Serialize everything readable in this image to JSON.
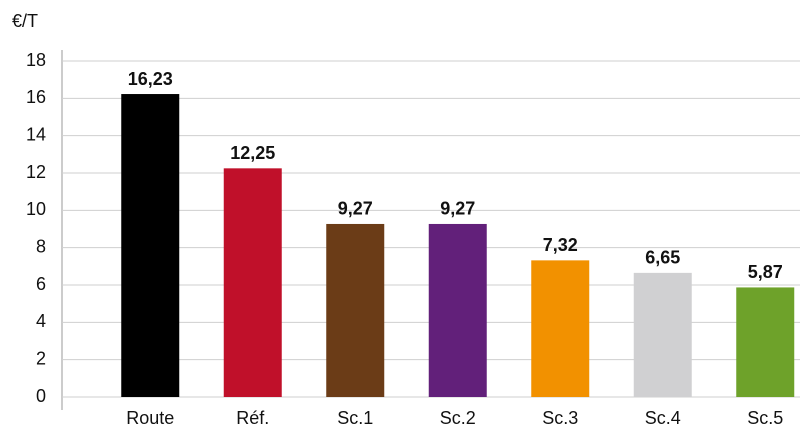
{
  "chart_data": {
    "type": "bar",
    "y_axis_label": "€/T",
    "categories": [
      "Route",
      "Réf.",
      "Sc.1",
      "Sc.2",
      "Sc.3",
      "Sc.4",
      "Sc.5"
    ],
    "values": [
      16.23,
      12.25,
      9.27,
      9.27,
      7.32,
      6.65,
      5.87
    ],
    "value_labels": [
      "16,23",
      "12,25",
      "9,27",
      "9,27",
      "7,32",
      "6,65",
      "5,87"
    ],
    "colors": [
      "#000000",
      "#c0102a",
      "#6b3c17",
      "#62207a",
      "#f29100",
      "#d0d0d2",
      "#6ea22a"
    ],
    "ylim": [
      0,
      18
    ],
    "yticks": [
      0,
      2,
      4,
      6,
      8,
      10,
      12,
      14,
      16,
      18
    ],
    "grid": true
  }
}
